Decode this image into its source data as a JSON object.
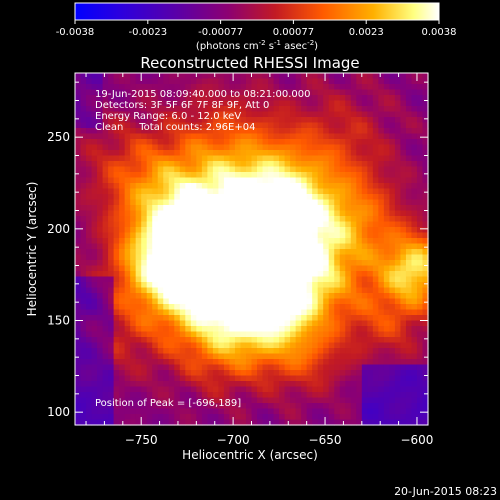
{
  "colorbar": {
    "tick_labels": [
      "-0.0038",
      "-0.0023",
      "-0.00077",
      "0.00077",
      "0.0023",
      "0.0038"
    ],
    "unit_label": "(photons cm",
    "unit_exp1": "-2",
    "unit_mid": " s",
    "unit_exp2": "-1",
    "unit_mid2": " asec",
    "unit_exp3": "-2",
    "unit_end": ")",
    "range": [
      -0.0038,
      0.0038
    ],
    "colors": [
      "#0000ff",
      "#2a00e0",
      "#5a00a8",
      "#8c0072",
      "#c21a24",
      "#ff5a00",
      "#ffb000",
      "#ffff80",
      "#ffffff"
    ]
  },
  "header": {
    "title": "Reconstructed RHESSI Image",
    "info_lines": [
      "19-Jun-2015 08:09:40.000 to 08:21:00.000",
      "Detectors: 3F 5F 6F 7F 8F 9F, Att 0",
      "Energy Range: 6.0 - 12.0 keV",
      "Clean     Total counts: 2.96E+04"
    ],
    "peak_label": "Position of Peak = [-696,189]"
  },
  "footer": {
    "timestamp": "20-Jun-2015 08:23"
  },
  "chart_data": {
    "type": "heatmap",
    "title": "Reconstructed RHESSI Image",
    "xlabel": "Heliocentric X (arcsec)",
    "ylabel": "Heliocentric Y (arcsec)",
    "xlim": [
      -786,
      -594
    ],
    "ylim": [
      93,
      285
    ],
    "x_ticks": [
      -750,
      -700,
      -650,
      -600
    ],
    "y_ticks": [
      100,
      150,
      200,
      250
    ],
    "x_tick_labels": [
      "−750",
      "−700",
      "−650",
      "−600"
    ],
    "y_tick_labels": [
      "100",
      "150",
      "200",
      "250"
    ],
    "peak": [
      -696,
      189
    ],
    "value_range": [
      -0.0038,
      0.0038
    ],
    "grid": false
  }
}
